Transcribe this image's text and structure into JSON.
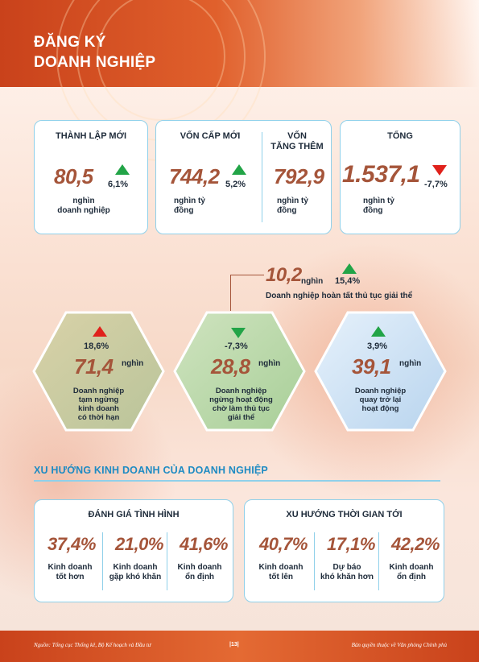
{
  "header": {
    "title_line1": "ĐĂNG KÝ",
    "title_line2": "DOANH NGHIỆP"
  },
  "cards": {
    "established": {
      "label": "THÀNH LẬP MỚI",
      "value": "80,5",
      "change": "6,1%",
      "direction": "up",
      "unit_line1": "nghìn",
      "unit_line2": "doanh nghiệp"
    },
    "new_capital": {
      "label": "VỐN CẤP MỚI",
      "value": "744,2",
      "change": "5,2%",
      "direction": "up",
      "unit_line1": "nghìn tỷ",
      "unit_line2": "đồng"
    },
    "added_capital": {
      "label_line1": "VỐN",
      "label_line2": "TĂNG THÊM",
      "value": "792,9",
      "unit_line1": "nghìn tỷ",
      "unit_line2": "đồng"
    },
    "total": {
      "label": "TỔNG",
      "value": "1.537,1",
      "change": "-7,7%",
      "direction": "down",
      "unit_line1": "nghìn tỷ",
      "unit_line2": "đồng"
    }
  },
  "dissolution": {
    "value": "10,2",
    "unit": "nghìn",
    "change": "15,4%",
    "direction": "up",
    "caption": "Doanh nghiệp hoàn tất thủ tục giải thể"
  },
  "hexagons": [
    {
      "change": "18,6%",
      "direction": "up",
      "value": "71,4",
      "unit": "nghìn",
      "caption_lines": [
        "Doanh nghiệp",
        "tạm ngừng",
        "kinh doanh",
        "có thời hạn"
      ]
    },
    {
      "change": "-7,3%",
      "direction": "down",
      "value": "28,8",
      "unit": "nghìn",
      "caption_lines": [
        "Doanh nghiệp",
        "ngừng hoạt động",
        "chờ làm thủ tục",
        "giải thể"
      ]
    },
    {
      "change": "3,9%",
      "direction": "up",
      "value": "39,1",
      "unit": "nghìn",
      "caption_lines": [
        "Doanh nghiệp",
        "quay trở lại",
        "hoạt động"
      ]
    }
  ],
  "trend_section": {
    "title": "XU HƯỚNG KINH DOANH CỦA DOANH NGHIỆP"
  },
  "assessment": {
    "title": "ĐÁNH GIÁ TÌNH HÌNH",
    "items": [
      {
        "value": "37,4%",
        "line1": "Kinh doanh",
        "line2": "tốt hơn"
      },
      {
        "value": "21,0%",
        "line1": "Kinh doanh",
        "line2": "gặp khó khăn"
      },
      {
        "value": "41,6%",
        "line1": "Kinh doanh",
        "line2": "ổn định"
      }
    ]
  },
  "outlook": {
    "title": "XU HƯỚNG THỜI GIAN TỚI",
    "items": [
      {
        "value": "40,7%",
        "line1": "Kinh doanh",
        "line2": "tốt lên"
      },
      {
        "value": "17,1%",
        "line1": "Dự báo",
        "line2": "khó khăn hơn"
      },
      {
        "value": "42,2%",
        "line1": "Kinh doanh",
        "line2": "ổn định"
      }
    ]
  },
  "footer": {
    "source": "Nguồn: Tổng cục Thống kê, Bộ Kế hoạch và Đầu tư",
    "page": "|13|",
    "copyright": "Bản quyền thuộc về Văn phòng Chính phủ"
  },
  "colors": {
    "accent": "#a5553a",
    "header": "#d9501f",
    "border": "#8fd0ea",
    "up": "#22a447",
    "down": "#e0211b",
    "section": "#1e8bc3"
  }
}
